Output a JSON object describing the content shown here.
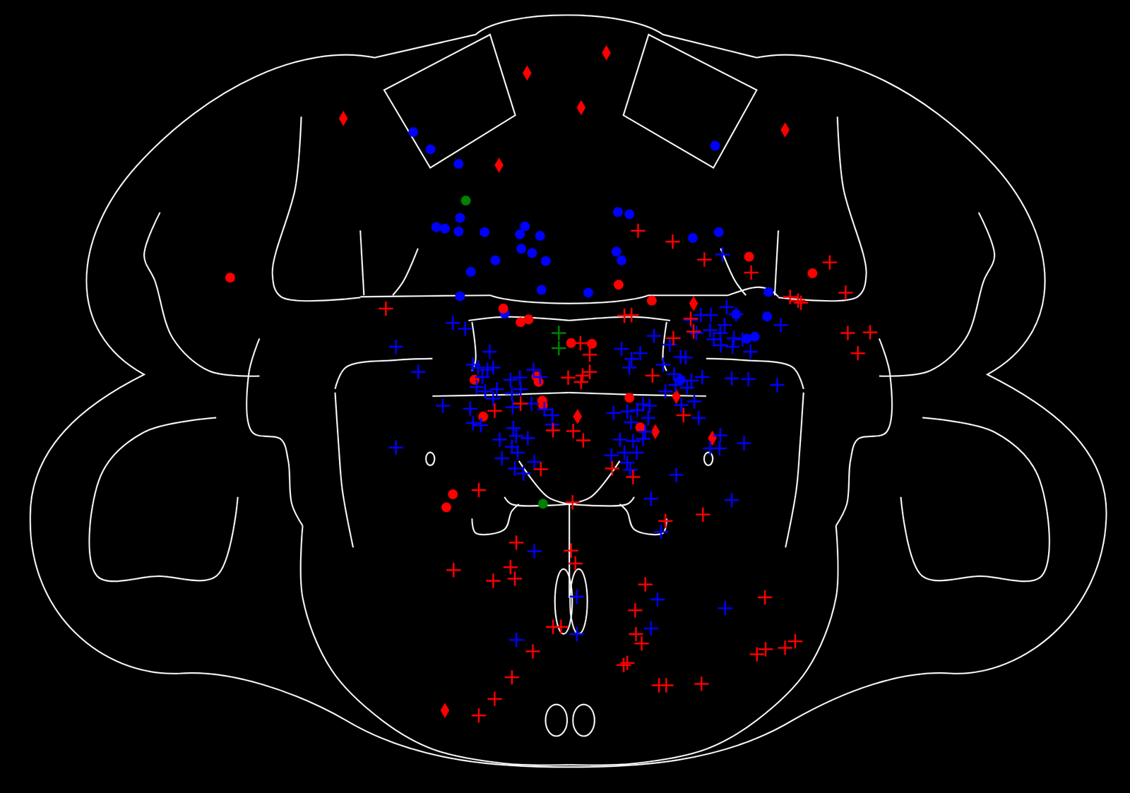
{
  "chart_data": {
    "type": "scatter",
    "xlim": [
      0,
      1568
    ],
    "ylim": [
      1101,
      0
    ],
    "tick_labels": false,
    "series": [
      {
        "color": "#ff0000",
        "marker": "diamond",
        "x": [
          841,
          731,
          806,
          476,
          1089,
          692,
          962,
          801,
          938,
          909,
          988,
          617
        ],
        "y": [
          73,
          101,
          149,
          164,
          180,
          229,
          421,
          578,
          550,
          599,
          608,
          986
        ]
      },
      {
        "color": "#0000ff",
        "marker": "circle",
        "x": [
          573,
          597,
          636,
          992,
          638,
          605,
          617,
          636,
          672,
          728,
          721,
          749,
          723,
          738,
          757,
          687,
          653,
          857,
          873,
          855,
          862,
          961,
          997,
          751,
          816,
          638,
          1066,
          1064,
          1021,
          1047,
          1036,
          944,
          700
        ],
        "y": [
          183,
          207,
          227,
          202,
          302,
          315,
          317,
          321,
          322,
          314,
          325,
          327,
          345,
          351,
          362,
          361,
          377,
          294,
          297,
          349,
          361,
          330,
          322,
          402,
          406,
          411,
          405,
          439,
          436,
          467,
          470,
          527,
          435
        ]
      },
      {
        "color": "#008000",
        "marker": "circle",
        "x": [
          646,
          753
        ],
        "y": [
          278,
          699
        ]
      },
      {
        "color": "#ff0000",
        "marker": "circle",
        "x": [
          319,
          1039,
          1127,
          858,
          904,
          698,
          722,
          733,
          792,
          821,
          744,
          747,
          658,
          752,
          753,
          873,
          670,
          888,
          628,
          619
        ],
        "y": [
          385,
          356,
          379,
          395,
          417,
          428,
          447,
          443,
          476,
          477,
          522,
          530,
          527,
          556,
          562,
          552,
          578,
          593,
          686,
          704
        ]
      },
      {
        "color": "#008000",
        "marker": "plus",
        "x": [
          775,
          775
        ],
        "y": [
          462,
          483
        ]
      },
      {
        "color": "#0000ff",
        "marker": "plus",
        "x": [
          628,
          645,
          549,
          580,
          679,
          656,
          663,
          676,
          684,
          669,
          661,
          673,
          689,
          708,
          721,
          740,
          749,
          722,
          710,
          684,
          614,
          652,
          656,
          667,
          711,
          737,
          755,
          766,
          766,
          712,
          716,
          693,
          710,
          732,
          741,
          696,
          718,
          714,
          726,
          549,
          862,
          888,
          876,
          873,
          907,
          929,
          958,
          972,
          986,
          1008,
          1021,
          966,
          985,
          990,
          999,
          1000,
          1018,
          1030,
          1016,
          1041,
          944,
          951,
          920,
          935,
          937,
          959,
          974,
          1015,
          1038,
          1078,
          923,
          953,
          963,
          945,
          969,
          892,
          901,
          884,
          870,
          851,
          899,
          875,
          860,
          878,
          892,
          883,
          866,
          848,
          895,
          870,
          874,
          999,
          1032,
          985,
          998,
          938,
          903,
          1015,
          917,
          741,
          800,
          912,
          1006,
          800,
          716,
          903,
          1002,
          1005,
          1083
        ],
        "y": [
          448,
          456,
          481,
          516,
          488,
          506,
          510,
          513,
          510,
          523,
          537,
          543,
          540,
          527,
          524,
          513,
          523,
          540,
          546,
          553,
          563,
          567,
          587,
          590,
          565,
          560,
          568,
          576,
          589,
          594,
          605,
          610,
          620,
          608,
          641,
          636,
          628,
          650,
          657,
          621,
          484,
          490,
          498,
          510,
          466,
          478,
          444,
          437,
          437,
          426,
          436,
          462,
          458,
          471,
          462,
          479,
          469,
          471,
          481,
          488,
          495,
          496,
          506,
          519,
          534,
          528,
          523,
          525,
          526,
          534,
          543,
          538,
          557,
          562,
          580,
          561,
          563,
          569,
          571,
          573,
          580,
          586,
          610,
          612,
          609,
          628,
          628,
          632,
          599,
          642,
          652,
          604,
          615,
          622,
          622,
          659,
          692,
          694,
          738,
          765,
          828,
          832,
          844,
          880,
          888,
          872,
          353,
          451,
          451
        ]
      },
      {
        "color": "#ff0000",
        "marker": "plus",
        "x": [
          885,
          933,
          977,
          1042,
          1151,
          1173,
          1096,
          1107,
          1111,
          535,
          866,
          876,
          934,
          958,
          962,
          1176,
          1207,
          1190,
          805,
          818,
          788,
          808,
          818,
          806,
          905,
          948,
          722,
          686,
          767,
          795,
          809,
          750,
          849,
          878,
          664,
          794,
          923,
          975,
          716,
          792,
          798,
          629,
          708,
          684,
          714,
          895,
          1061,
          881,
          767,
          778,
          882,
          890,
          1103,
          1089,
          1062,
          1050,
          739,
          870,
          865,
          710,
          914,
          924,
          973,
          686,
          664
        ],
        "y": [
          320,
          335,
          360,
          378,
          364,
          406,
          412,
          417,
          420,
          428,
          438,
          437,
          469,
          442,
          460,
          462,
          461,
          490,
          476,
          492,
          524,
          521,
          516,
          530,
          521,
          576,
          560,
          570,
          597,
          598,
          611,
          651,
          650,
          662,
          680,
          697,
          723,
          714,
          753,
          764,
          782,
          791,
          787,
          806,
          803,
          811,
          829,
          847,
          870,
          870,
          880,
          893,
          890,
          899,
          901,
          908,
          904,
          920,
          923,
          940,
          951,
          951,
          949,
          970,
          993
        ]
      }
    ]
  }
}
